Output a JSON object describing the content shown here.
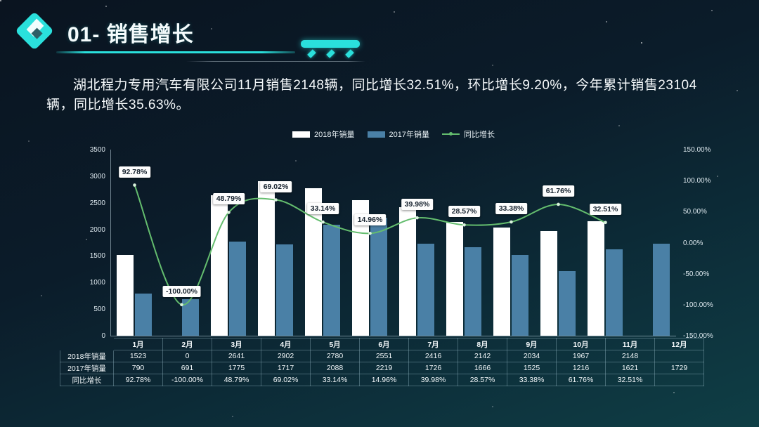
{
  "header": {
    "title": "01- 销售增长"
  },
  "summary": {
    "text": "湖北程力专用汽车有限公司11月销售2148辆，同比增长32.51%，环比增长9.20%，今年累计销售23104辆，同比增长35.63%。"
  },
  "accent_colors": {
    "cyan": "#2ae0dc",
    "bar_2018": "#ffffff",
    "bar_2017": "#4a80a6",
    "line_green": "#64bd6e"
  },
  "chart_data": {
    "type": "combo-bar-line",
    "title": "",
    "categories": [
      "1月",
      "2月",
      "3月",
      "4月",
      "5月",
      "6月",
      "7月",
      "8月",
      "9月",
      "10月",
      "11月",
      "12月"
    ],
    "series": [
      {
        "name": "2018年销量",
        "type": "bar",
        "axis": "left",
        "color": "#ffffff",
        "values": [
          1523,
          0,
          2641,
          2902,
          2780,
          2551,
          2416,
          2142,
          2034,
          1967,
          2148,
          null
        ]
      },
      {
        "name": "2017年销量",
        "type": "bar",
        "axis": "left",
        "color": "#4a80a6",
        "values": [
          790,
          691,
          1775,
          1717,
          2088,
          2219,
          1726,
          1666,
          1525,
          1216,
          1621,
          1729
        ]
      },
      {
        "name": "同比增长",
        "type": "line",
        "axis": "right",
        "color": "#64bd6e",
        "values": [
          92.78,
          -100.0,
          48.79,
          69.02,
          33.14,
          14.96,
          39.98,
          28.57,
          33.38,
          61.76,
          32.51,
          null
        ],
        "labels": [
          "92.78%",
          "-100.00%",
          "48.79%",
          "69.02%",
          "33.14%",
          "14.96%",
          "39.98%",
          "28.57%",
          "33.38%",
          "61.76%",
          "32.51%",
          ""
        ]
      }
    ],
    "left_axis": {
      "min": 0,
      "max": 3500,
      "step": 500,
      "ticks_top_to_bottom": [
        "3500",
        "3000",
        "2500",
        "2000",
        "1500",
        "1000",
        "500",
        "0"
      ]
    },
    "right_axis": {
      "min": -150,
      "max": 150,
      "step": 50,
      "ticks_top_to_bottom": [
        "150.00%",
        "100.00%",
        "50.00%",
        "0.00%",
        "-50.00%",
        "-100.00%",
        "-150.00%"
      ]
    },
    "grid": false,
    "legend_position": "top-center"
  },
  "table": {
    "columns": [
      "1月",
      "2月",
      "3月",
      "4月",
      "5月",
      "6月",
      "7月",
      "8月",
      "9月",
      "10月",
      "11月",
      "12月"
    ],
    "rows": [
      {
        "label": "2018年销量",
        "cells": [
          "1523",
          "0",
          "2641",
          "2902",
          "2780",
          "2551",
          "2416",
          "2142",
          "2034",
          "1967",
          "2148",
          ""
        ]
      },
      {
        "label": "2017年销量",
        "cells": [
          "790",
          "691",
          "1775",
          "1717",
          "2088",
          "2219",
          "1726",
          "1666",
          "1525",
          "1216",
          "1621",
          "1729"
        ]
      },
      {
        "label": "同比增长",
        "cells": [
          "92.78%",
          "-100.00%",
          "48.79%",
          "69.02%",
          "33.14%",
          "14.96%",
          "39.98%",
          "28.57%",
          "33.38%",
          "61.76%",
          "32.51%",
          ""
        ]
      }
    ]
  }
}
